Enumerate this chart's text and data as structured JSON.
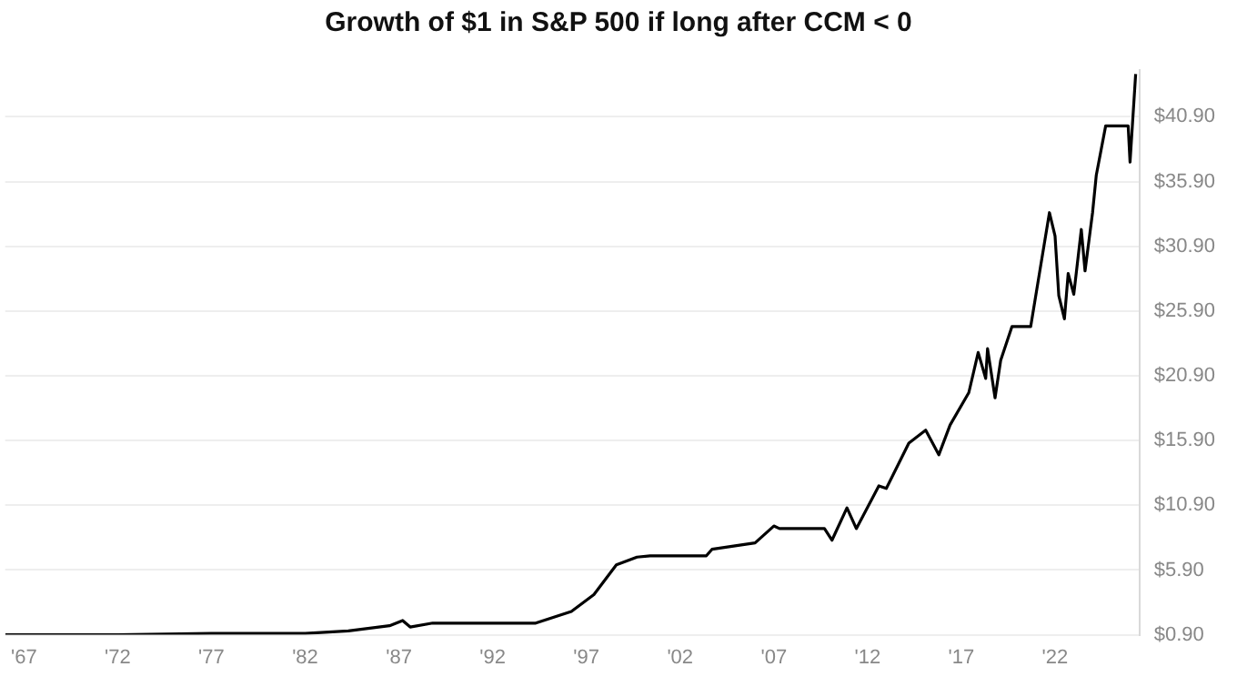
{
  "chart_data": {
    "type": "line",
    "title": "Growth of $1 in S&P 500 if long after CCM < 0",
    "x": [
      1966,
      1972,
      1977,
      1982,
      1984.3,
      1986.5,
      1987.2,
      1987.6,
      1988.8,
      1994.3,
      1996.2,
      1997.4,
      1998.6,
      1999.7,
      2000.4,
      2003.4,
      2003.7,
      2006.0,
      2007.0,
      2007.3,
      2009.7,
      2010.1,
      2010.9,
      2011.4,
      2012.6,
      2013.0,
      2014.2,
      2015.1,
      2015.8,
      2016.4,
      2017.4,
      2017.9,
      2018.3,
      2018.4,
      2018.8,
      2019.1,
      2019.7,
      2020.7,
      2021.2,
      2021.7,
      2022.0,
      2022.2,
      2022.5,
      2022.7,
      2023.0,
      2023.4,
      2023.6,
      2024.0,
      2024.2,
      2024.7,
      2025.9,
      2026.0,
      2026.3
    ],
    "series": [
      {
        "color": "#000000",
        "values": [
          0.9,
          0.9,
          1.0,
          1.0,
          1.2,
          1.6,
          2.0,
          1.5,
          1.8,
          1.8,
          2.7,
          4.0,
          6.3,
          6.9,
          7.0,
          7.0,
          7.5,
          8.0,
          9.3,
          9.1,
          9.1,
          8.2,
          10.7,
          9.1,
          12.4,
          12.2,
          15.7,
          16.7,
          14.8,
          17.1,
          19.6,
          22.7,
          20.7,
          23.0,
          19.2,
          22.1,
          24.7,
          24.7,
          29.1,
          33.5,
          31.7,
          27.1,
          25.3,
          28.8,
          27.2,
          32.2,
          29.0,
          33.5,
          36.4,
          40.2,
          40.2,
          37.4,
          44.2
        ]
      }
    ],
    "xlim": [
      1966,
      2026.5
    ],
    "xticks": [
      {
        "value": 1967,
        "label": "'67"
      },
      {
        "value": 1972,
        "label": "'72"
      },
      {
        "value": 1977,
        "label": "'77"
      },
      {
        "value": 1982,
        "label": "'82"
      },
      {
        "value": 1987,
        "label": "'87"
      },
      {
        "value": 1992,
        "label": "'92"
      },
      {
        "value": 1997,
        "label": "'97"
      },
      {
        "value": 2002,
        "label": "'02"
      },
      {
        "value": 2007,
        "label": "'07"
      },
      {
        "value": 2012,
        "label": "'12"
      },
      {
        "value": 2017,
        "label": "'17"
      },
      {
        "value": 2022,
        "label": "'22"
      }
    ],
    "ylim": [
      0.9,
      44.5
    ],
    "yticks": [
      {
        "value": 0.9,
        "label": "$0.90"
      },
      {
        "value": 5.9,
        "label": "$5.90"
      },
      {
        "value": 10.9,
        "label": "$10.90"
      },
      {
        "value": 15.9,
        "label": "$15.90"
      },
      {
        "value": 20.9,
        "label": "$20.90"
      },
      {
        "value": 25.9,
        "label": "$25.90"
      },
      {
        "value": 30.9,
        "label": "$30.90"
      },
      {
        "value": 35.9,
        "label": "$35.90"
      },
      {
        "value": 40.9,
        "label": "$40.90"
      }
    ],
    "grid": "y",
    "legend": false,
    "marker": "none",
    "line_style": "solid"
  }
}
